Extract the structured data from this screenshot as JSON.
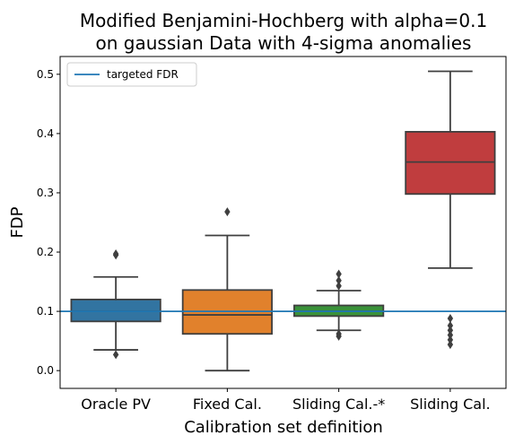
{
  "chart_data": {
    "type": "box",
    "title_line1": "Modified Benjamini-Hochberg with alpha=0.1",
    "title_line2": "on gaussian Data with 4-sigma anomalies",
    "xlabel": "Calibration set definition",
    "ylabel": "FDP",
    "ylim": [
      -0.03,
      0.53
    ],
    "yticks": [
      0.0,
      0.1,
      0.2,
      0.3,
      0.4,
      0.5
    ],
    "ytick_labels": [
      "0.0",
      "0.1",
      "0.2",
      "0.3",
      "0.4",
      "0.5"
    ],
    "grid": false,
    "legend": {
      "position": "top-left",
      "entries": [
        {
          "label": "targeted FDR",
          "color": "#1f77b4"
        }
      ]
    },
    "reference_line": {
      "label": "targeted FDR",
      "y": 0.1,
      "color": "#1f77b4"
    },
    "categories": [
      "Oracle PV",
      "Fixed Cal.",
      "Sliding Cal.-*",
      "Sliding Cal."
    ],
    "boxes": [
      {
        "category": "Oracle PV",
        "color": "#3274a1",
        "whisker_low": 0.035,
        "q1": 0.083,
        "median": 0.1,
        "q3": 0.12,
        "whisker_high": 0.158,
        "outliers": [
          0.027,
          0.195,
          0.197
        ]
      },
      {
        "category": "Fixed Cal.",
        "color": "#e1812c",
        "whisker_low": 0.0,
        "q1": 0.062,
        "median": 0.094,
        "q3": 0.136,
        "whisker_high": 0.228,
        "outliers": [
          0.268
        ]
      },
      {
        "category": "Sliding Cal.-*",
        "color": "#3a923a",
        "whisker_low": 0.068,
        "q1": 0.092,
        "median": 0.1,
        "q3": 0.11,
        "whisker_high": 0.135,
        "outliers": [
          0.058,
          0.062,
          0.143,
          0.152,
          0.163
        ]
      },
      {
        "category": "Sliding Cal.",
        "color": "#c03d3e",
        "whisker_low": 0.173,
        "q1": 0.298,
        "median": 0.352,
        "q3": 0.403,
        "whisker_high": 0.505,
        "outliers": [
          0.044,
          0.052,
          0.06,
          0.068,
          0.076,
          0.088
        ]
      }
    ]
  }
}
